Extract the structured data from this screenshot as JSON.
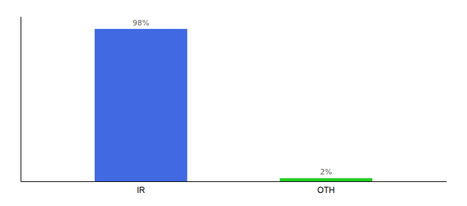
{
  "chart_data": {
    "type": "bar",
    "categories": [
      "IR",
      "OTH"
    ],
    "values": [
      98,
      2
    ],
    "value_labels": [
      "98%",
      "2%"
    ],
    "colors": [
      "#4169e1",
      "#22cc22"
    ],
    "ylim": [
      0,
      106
    ],
    "data_labels": true,
    "tick_labels": "x"
  }
}
